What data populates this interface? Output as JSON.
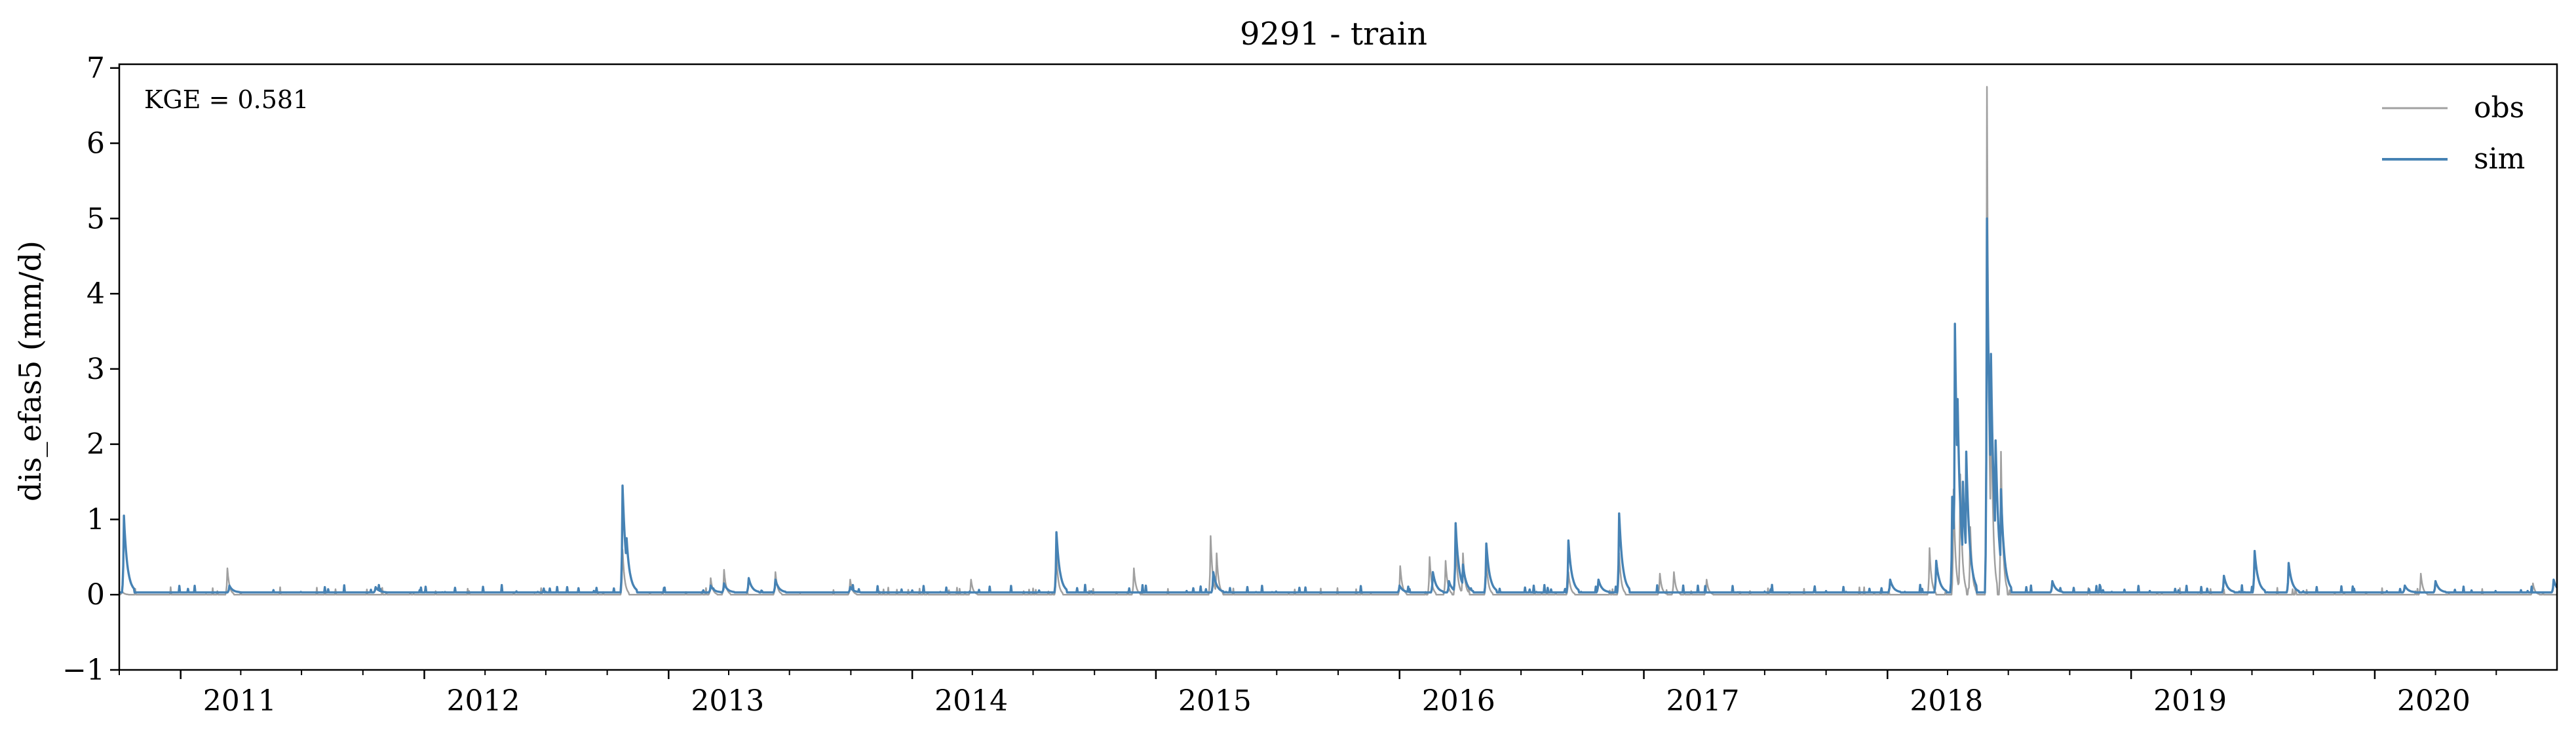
{
  "chart_data": {
    "type": "line",
    "title": "9291 - train",
    "xlabel": "",
    "ylabel": "dis_efas5 (mm/d)",
    "annotation": "KGE = 0.581",
    "xlim": [
      "2010-10-01",
      "2020-09-30"
    ],
    "ylim": [
      -1,
      7.05
    ],
    "yticks": [
      -1,
      0,
      1,
      2,
      3,
      4,
      5,
      6,
      7
    ],
    "ytick_labels": [
      "−1",
      "0",
      "1",
      "2",
      "3",
      "4",
      "5",
      "6",
      "7"
    ],
    "xticks": [
      "2011-01-01",
      "2012-01-01",
      "2013-01-01",
      "2014-01-01",
      "2015-01-01",
      "2016-01-01",
      "2017-01-01",
      "2018-01-01",
      "2019-01-01",
      "2020-01-01"
    ],
    "xtick_labels": [
      "2011",
      "2012",
      "2013",
      "2014",
      "2015",
      "2016",
      "2017",
      "2018",
      "2019",
      "2020"
    ],
    "grid": false,
    "legend_position": "top-right",
    "series": [
      {
        "name": "obs",
        "color": "#a0a0a0",
        "baseline": 0.0,
        "peaks": [
          [
            "2010-10-05",
            0.05
          ],
          [
            "2011-03-12",
            0.35
          ],
          [
            "2012-10-24",
            0.6
          ],
          [
            "2013-03-05",
            0.22
          ],
          [
            "2013-03-25",
            0.33
          ],
          [
            "2013-06-10",
            0.3
          ],
          [
            "2013-09-30",
            0.2
          ],
          [
            "2014-03-30",
            0.2
          ],
          [
            "2014-08-05",
            0.5
          ],
          [
            "2014-11-29",
            0.35
          ],
          [
            "2015-03-24",
            0.78
          ],
          [
            "2015-04-02",
            0.55
          ],
          [
            "2016-01-02",
            0.38
          ],
          [
            "2016-02-15",
            0.5
          ],
          [
            "2016-03-10",
            0.45
          ],
          [
            "2016-03-25",
            0.75
          ],
          [
            "2016-04-05",
            0.55
          ],
          [
            "2016-05-10",
            0.45
          ],
          [
            "2016-09-10",
            0.3
          ],
          [
            "2016-11-25",
            0.55
          ],
          [
            "2017-01-25",
            0.28
          ],
          [
            "2017-02-15",
            0.3
          ],
          [
            "2017-04-05",
            0.2
          ],
          [
            "2018-03-05",
            0.62
          ],
          [
            "2018-04-10",
            1.4
          ],
          [
            "2018-04-20",
            1.6
          ],
          [
            "2018-05-05",
            0.9
          ],
          [
            "2018-05-30",
            6.75
          ],
          [
            "2018-06-05",
            3.0
          ],
          [
            "2018-06-20",
            1.9
          ],
          [
            "2020-03-10",
            0.28
          ],
          [
            "2020-08-25",
            0.15
          ]
        ]
      },
      {
        "name": "sim",
        "color": "#4682b4",
        "baseline": 0.03,
        "peaks": [
          [
            "2010-10-08",
            1.05
          ],
          [
            "2011-03-15",
            0.12
          ],
          [
            "2011-10-20",
            0.1
          ],
          [
            "2012-10-24",
            1.45
          ],
          [
            "2012-10-30",
            0.75
          ],
          [
            "2013-03-05",
            0.12
          ],
          [
            "2013-03-25",
            0.15
          ],
          [
            "2013-05-01",
            0.22
          ],
          [
            "2013-06-10",
            0.2
          ],
          [
            "2013-09-30",
            0.1
          ],
          [
            "2014-08-05",
            0.83
          ],
          [
            "2015-03-28",
            0.3
          ],
          [
            "2016-01-01",
            0.12
          ],
          [
            "2016-02-20",
            0.3
          ],
          [
            "2016-03-15",
            0.18
          ],
          [
            "2016-03-25",
            0.95
          ],
          [
            "2016-04-05",
            0.4
          ],
          [
            "2016-05-10",
            0.68
          ],
          [
            "2016-09-10",
            0.72
          ],
          [
            "2016-10-25",
            0.2
          ],
          [
            "2016-11-25",
            1.08
          ],
          [
            "2018-01-05",
            0.2
          ],
          [
            "2018-03-15",
            0.45
          ],
          [
            "2018-04-08",
            1.3
          ],
          [
            "2018-04-12",
            3.6
          ],
          [
            "2018-04-16",
            2.6
          ],
          [
            "2018-04-24",
            1.5
          ],
          [
            "2018-04-29",
            1.9
          ],
          [
            "2018-05-30",
            5.0
          ],
          [
            "2018-06-05",
            3.2
          ],
          [
            "2018-06-12",
            2.05
          ],
          [
            "2018-06-20",
            1.4
          ],
          [
            "2018-09-05",
            0.18
          ],
          [
            "2019-05-20",
            0.25
          ],
          [
            "2019-07-05",
            0.58
          ],
          [
            "2019-08-25",
            0.42
          ],
          [
            "2020-02-15",
            0.12
          ],
          [
            "2020-04-01",
            0.18
          ],
          [
            "2020-09-25",
            0.2
          ]
        ]
      }
    ]
  }
}
